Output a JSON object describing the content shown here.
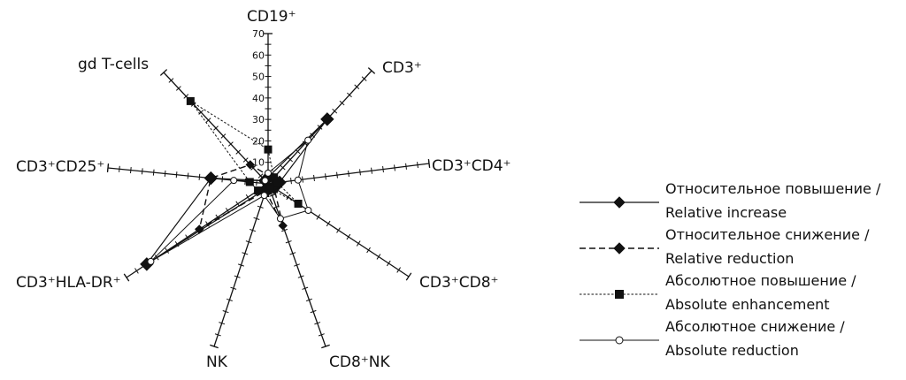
{
  "chart_data": {
    "type": "radar",
    "title": "",
    "rmax": 70,
    "radial_ticks": [
      "10",
      "20",
      "30",
      "40",
      "50",
      "60",
      "70"
    ],
    "axes": [
      "CD19⁺",
      "CD3⁺",
      "CD3⁺CD4⁺",
      "CD3⁺CD8⁺",
      "CD8⁺NK",
      "NK",
      "CD3⁺HLA-DR⁺",
      "CD3⁺CD25⁺",
      "gd  T-cells"
    ],
    "series": [
      {
        "name": "Относительное повышение / Relative increase",
        "values": [
          3,
          40,
          5,
          3,
          2,
          2,
          60,
          25,
          2
        ]
      },
      {
        "name": "Относительное снижение / Relative reduction",
        "values": [
          4,
          3,
          3,
          3,
          18,
          3,
          34,
          25,
          12
        ]
      },
      {
        "name": "Абсолютное повышение / Absolute enhancement",
        "values": [
          16,
          4,
          4,
          15,
          2,
          4,
          5,
          8,
          52
        ]
      },
      {
        "name": "Абсолютное снижение / Absolute reduction",
        "values": [
          5,
          27,
          13,
          20,
          15,
          5,
          58,
          15,
          2
        ]
      }
    ],
    "legend": {
      "placement": "right",
      "entries": [
        {
          "line1": "Относительное повышение /",
          "line2": "Relative increase"
        },
        {
          "line1": "Относительное снижение /",
          "line2": "Relative reduction"
        },
        {
          "line1": "Абсолютное повышение /",
          "line2": "Absolute enhancement"
        },
        {
          "line1": "Абсолютное снижение /",
          "line2": "Absolute reduction"
        }
      ]
    }
  }
}
